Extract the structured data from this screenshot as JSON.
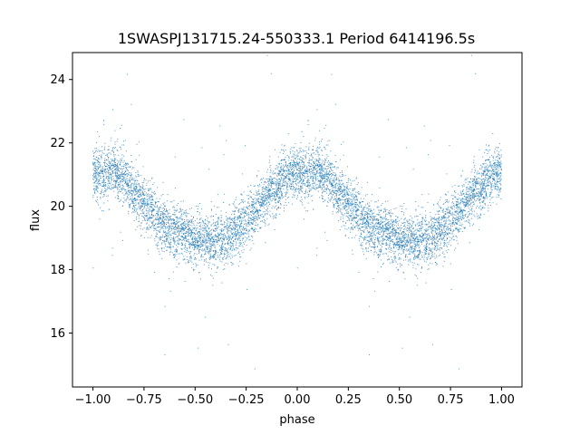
{
  "chart_data": {
    "type": "scatter",
    "title": "1SWASPJ131715.24-550333.1 Period 6414196.5s",
    "xlabel": "phase",
    "ylabel": "flux",
    "xlim": [
      -1.1,
      1.1
    ],
    "ylim": [
      14.3,
      24.85
    ],
    "x_ticks": [
      -1.0,
      -0.75,
      -0.5,
      -0.25,
      0.0,
      0.25,
      0.5,
      0.75,
      1.0
    ],
    "x_tick_labels": [
      "−1.00",
      "−0.75",
      "−0.50",
      "−0.25",
      "0.00",
      "0.25",
      "0.50",
      "0.75",
      "1.00"
    ],
    "y_ticks": [
      16,
      18,
      20,
      22,
      24
    ],
    "y_tick_labels": [
      "16",
      "18",
      "20",
      "22",
      "24"
    ],
    "grid": false,
    "legend": "none",
    "series": [
      {
        "color": "#1f77b4",
        "marker_size": "tiny",
        "profile_phase": [
          0.0,
          0.05,
          0.1,
          0.15,
          0.2,
          0.25,
          0.3,
          0.35,
          0.4,
          0.45,
          0.5,
          0.55,
          0.6,
          0.65,
          0.7,
          0.75,
          0.8,
          0.85,
          0.9,
          0.95,
          1.0
        ],
        "profile_flux": [
          21.1,
          20.9,
          21.2,
          20.9,
          20.5,
          20.1,
          19.7,
          19.4,
          19.2,
          19.1,
          19.0,
          18.9,
          18.9,
          19.0,
          19.2,
          19.6,
          19.9,
          20.3,
          20.6,
          20.9,
          21.1
        ],
        "scatter_sigma": 0.55,
        "points_per_half": 4200
      }
    ]
  }
}
